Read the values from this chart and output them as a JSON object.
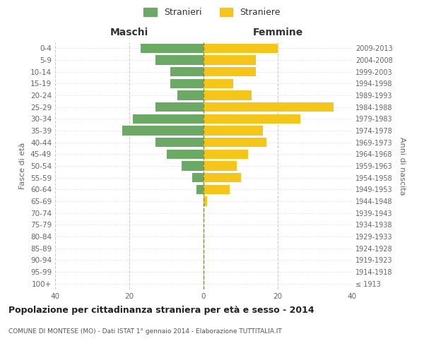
{
  "age_groups": [
    "100+",
    "95-99",
    "90-94",
    "85-89",
    "80-84",
    "75-79",
    "70-74",
    "65-69",
    "60-64",
    "55-59",
    "50-54",
    "45-49",
    "40-44",
    "35-39",
    "30-34",
    "25-29",
    "20-24",
    "15-19",
    "10-14",
    "5-9",
    "0-4"
  ],
  "birth_years": [
    "≤ 1913",
    "1914-1918",
    "1919-1923",
    "1924-1928",
    "1929-1933",
    "1934-1938",
    "1939-1943",
    "1944-1948",
    "1949-1953",
    "1954-1958",
    "1959-1963",
    "1964-1968",
    "1969-1973",
    "1974-1978",
    "1979-1983",
    "1984-1988",
    "1989-1993",
    "1994-1998",
    "1999-2003",
    "2004-2008",
    "2009-2013"
  ],
  "maschi": [
    0,
    0,
    0,
    0,
    0,
    0,
    0,
    0,
    2,
    3,
    6,
    10,
    13,
    22,
    19,
    13,
    7,
    9,
    9,
    13,
    17
  ],
  "femmine": [
    0,
    0,
    0,
    0,
    0,
    0,
    0,
    1,
    7,
    10,
    9,
    12,
    17,
    16,
    26,
    35,
    13,
    8,
    14,
    14,
    20
  ],
  "color_maschi": "#6aaa64",
  "color_femmine": "#f5c518",
  "title": "Popolazione per cittadinanza straniera per età e sesso - 2014",
  "subtitle": "COMUNE DI MONTESE (MO) - Dati ISTAT 1° gennaio 2014 - Elaborazione TUTTITALIA.IT",
  "xlabel_left": "Maschi",
  "xlabel_right": "Femmine",
  "ylabel_left": "Fasce di età",
  "ylabel_right": "Anni di nascita",
  "xlim": 40,
  "legend_stranieri": "Stranieri",
  "legend_straniere": "Straniere",
  "bg_color": "#ffffff",
  "grid_color": "#cccccc",
  "bar_height": 0.8,
  "tick_color": "#888888",
  "label_color": "#666666"
}
